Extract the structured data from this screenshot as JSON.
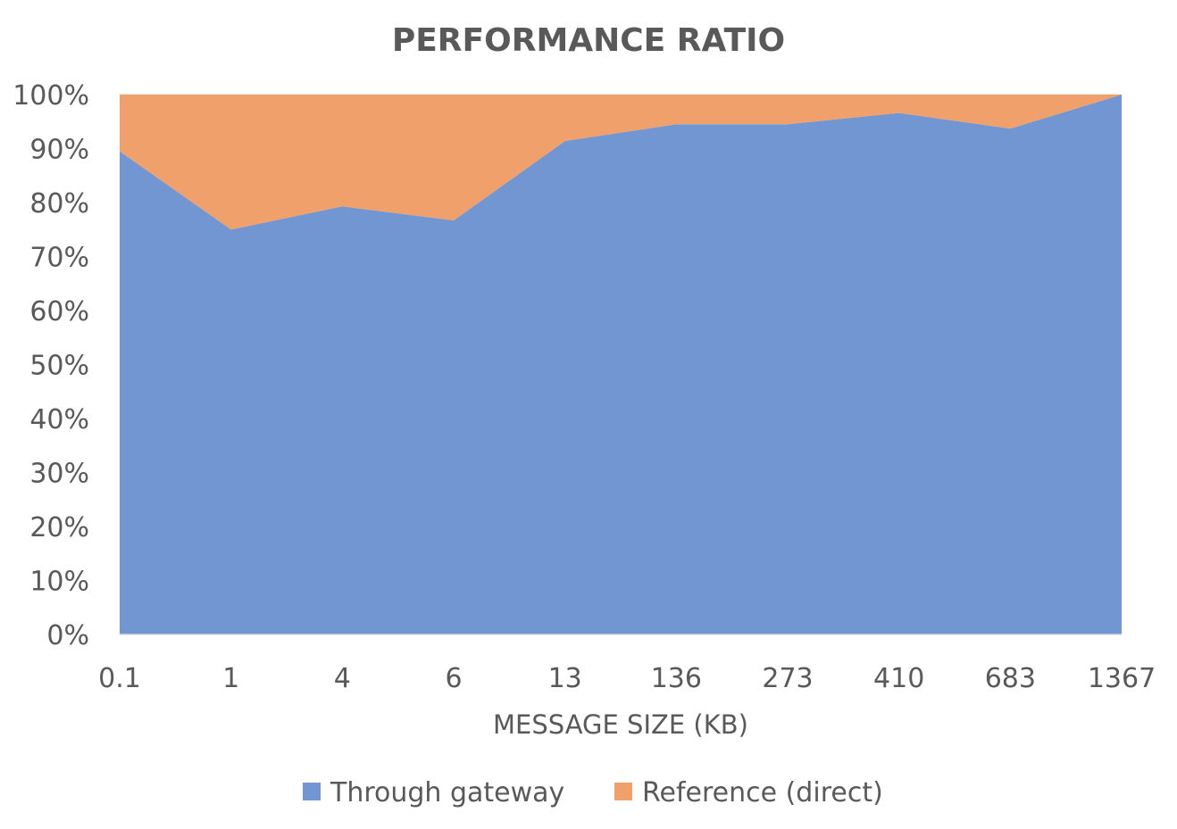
{
  "chart_data": {
    "type": "area",
    "stacked": "percent",
    "title": "PERFORMANCE RATIO",
    "xlabel": "MESSAGE SIZE (KB)",
    "ylabel": "",
    "categories": [
      "0.1",
      "1",
      "4",
      "6",
      "13",
      "136",
      "273",
      "410",
      "683",
      "1367"
    ],
    "ylim": [
      0,
      100
    ],
    "yticks": [
      "0%",
      "10%",
      "20%",
      "30%",
      "40%",
      "50%",
      "60%",
      "70%",
      "80%",
      "90%",
      "100%"
    ],
    "grid": true,
    "legend_position": "bottom",
    "series": [
      {
        "name": "Through gateway",
        "color": "#7296d2",
        "values": [
          89.5,
          75,
          79.3,
          76.7,
          91.4,
          94.5,
          94.5,
          96.6,
          93.7,
          100
        ]
      },
      {
        "name": "Reference (direct)",
        "color": "#f0a06a",
        "values": [
          10.5,
          25,
          20.7,
          23.3,
          8.6,
          5.5,
          5.5,
          3.4,
          6.3,
          0
        ]
      }
    ]
  }
}
